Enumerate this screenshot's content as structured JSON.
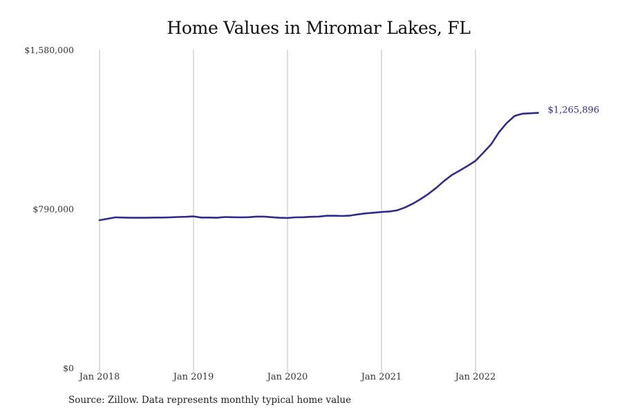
{
  "chart_data": {
    "type": "line",
    "title": "Home Values in Miromar Lakes, FL",
    "xlabel": "",
    "ylabel": "",
    "ylim": [
      0,
      1580000
    ],
    "y_ticks": [
      {
        "value": 0,
        "label": "$0"
      },
      {
        "value": 790000,
        "label": "$790,000"
      },
      {
        "value": 1580000,
        "label": "$1,580,000"
      }
    ],
    "x_ticks": [
      {
        "month_index": 0,
        "label": "Jan 2018"
      },
      {
        "month_index": 12,
        "label": "Jan 2019"
      },
      {
        "month_index": 24,
        "label": "Jan 2020"
      },
      {
        "month_index": 36,
        "label": "Jan 2021"
      },
      {
        "month_index": 48,
        "label": "Jan 2022"
      }
    ],
    "grid": {
      "vertical": true,
      "horizontal": false
    },
    "line_color": "#2e2c88",
    "series": [
      {
        "name": "Typical home value",
        "x": [
          "2018-01",
          "2018-02",
          "2018-03",
          "2018-04",
          "2018-05",
          "2018-06",
          "2018-07",
          "2018-08",
          "2018-09",
          "2018-10",
          "2018-11",
          "2018-12",
          "2019-01",
          "2019-02",
          "2019-03",
          "2019-04",
          "2019-05",
          "2019-06",
          "2019-07",
          "2019-08",
          "2019-09",
          "2019-10",
          "2019-11",
          "2019-12",
          "2020-01",
          "2020-02",
          "2020-03",
          "2020-04",
          "2020-05",
          "2020-06",
          "2020-07",
          "2020-08",
          "2020-09",
          "2020-10",
          "2020-11",
          "2020-12",
          "2021-01",
          "2021-02",
          "2021-03",
          "2021-04",
          "2021-05",
          "2021-06",
          "2021-07",
          "2021-08",
          "2021-09",
          "2021-10",
          "2021-11",
          "2021-12",
          "2022-01",
          "2022-02",
          "2022-03",
          "2022-04",
          "2022-05",
          "2022-06",
          "2022-07",
          "2022-08",
          "2022-09"
        ],
        "values": [
          733000,
          740000,
          747000,
          746000,
          745000,
          745000,
          745000,
          746000,
          746000,
          747000,
          749000,
          750000,
          752000,
          746000,
          746000,
          745000,
          749000,
          748000,
          747000,
          748000,
          751000,
          751000,
          748000,
          745000,
          744000,
          747000,
          748000,
          750000,
          751000,
          755000,
          755000,
          754000,
          756000,
          762000,
          767000,
          770000,
          774000,
          776000,
          782000,
          796000,
          815000,
          838000,
          864000,
          894000,
          928000,
          958000,
          980000,
          1003000,
          1028000,
          1068000,
          1110000,
          1170000,
          1216000,
          1251000,
          1262000,
          1264000,
          1265896
        ]
      }
    ],
    "end_label": "$1,265,896",
    "source_note": "Source: Zillow. Data represents monthly typical home value"
  }
}
